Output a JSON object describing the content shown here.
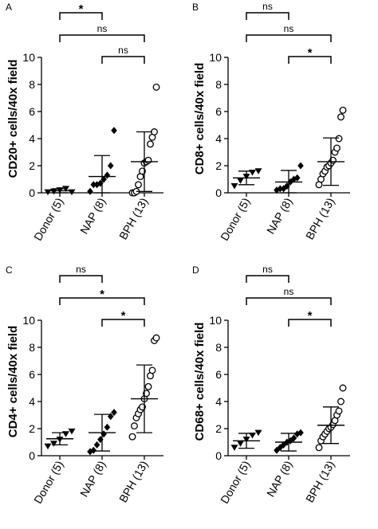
{
  "chart_data": [
    {
      "panel": "A",
      "type": "scatter",
      "ylabel": "CD20+ cells/40x  field",
      "ylim": [
        0,
        10
      ],
      "yticks": [
        0,
        2,
        4,
        6,
        8,
        10
      ],
      "categories": [
        "Donor (5)",
        "NAP (8)",
        "BPH (13)"
      ],
      "markers": [
        "triangle-down",
        "diamond",
        "circle-open"
      ],
      "points": [
        [
          0.05,
          0.1,
          0.2,
          0.3,
          0.05
        ],
        [
          0.1,
          0.6,
          0.6,
          0.7,
          1.0,
          1.3,
          2.0,
          4.6
        ],
        [
          0.0,
          0.0,
          0.1,
          0.6,
          1.2,
          1.6,
          2.2,
          2.3,
          2.4,
          3.6,
          4.1,
          4.5,
          7.8
        ]
      ],
      "mean": [
        0.15,
        1.2,
        2.3
      ],
      "sd": [
        0.15,
        1.55,
        2.2
      ],
      "brackets": [
        {
          "from": 0,
          "to": 1,
          "label": "*"
        },
        {
          "from": 0,
          "to": 2,
          "label": "ns"
        },
        {
          "from": 1,
          "to": 2,
          "label": "ns"
        }
      ]
    },
    {
      "panel": "B",
      "type": "scatter",
      "ylabel": "CD8+ cells/40x  field",
      "ylim": [
        0,
        10
      ],
      "yticks": [
        0,
        2,
        4,
        6,
        8,
        10
      ],
      "categories": [
        "Donor (5)",
        "NAP (8)",
        "BPH (13)"
      ],
      "markers": [
        "triangle-down",
        "diamond",
        "circle-open"
      ],
      "points": [
        [
          0.5,
          0.9,
          1.2,
          1.5,
          1.6
        ],
        [
          0.2,
          0.3,
          0.3,
          0.5,
          0.8,
          1.0,
          1.1,
          2.0
        ],
        [
          0.6,
          1.0,
          1.4,
          1.6,
          1.9,
          2.0,
          2.2,
          2.4,
          3.0,
          3.3,
          4.0,
          5.6,
          6.1
        ]
      ],
      "mean": [
        1.1,
        0.8,
        2.3
      ],
      "sd": [
        0.5,
        0.85,
        1.75
      ],
      "brackets": [
        {
          "from": 0,
          "to": 1,
          "label": "ns"
        },
        {
          "from": 0,
          "to": 2,
          "label": "ns"
        },
        {
          "from": 1,
          "to": 2,
          "label": "*"
        }
      ]
    },
    {
      "panel": "C",
      "type": "scatter",
      "ylabel": "CD4+ cells/40x  field",
      "ylim": [
        0,
        10
      ],
      "yticks": [
        0,
        2,
        4,
        6,
        8,
        10
      ],
      "categories": [
        "Donor (5)",
        "NAP (8)",
        "BPH (13)"
      ],
      "markers": [
        "triangle-down",
        "diamond",
        "circle-open"
      ],
      "points": [
        [
          0.7,
          0.9,
          1.2,
          1.6,
          1.8
        ],
        [
          0.3,
          0.4,
          0.8,
          1.2,
          1.6,
          2.1,
          2.9,
          3.2
        ],
        [
          1.4,
          2.2,
          2.8,
          3.1,
          3.4,
          3.6,
          4.2,
          4.6,
          5.1,
          5.9,
          6.3,
          8.5,
          8.7
        ]
      ],
      "mean": [
        1.25,
        1.7,
        4.2
      ],
      "sd": [
        0.45,
        1.35,
        2.5
      ],
      "brackets": [
        {
          "from": 0,
          "to": 1,
          "label": "ns"
        },
        {
          "from": 0,
          "to": 2,
          "label": "*"
        },
        {
          "from": 1,
          "to": 2,
          "label": "*"
        }
      ]
    },
    {
      "panel": "D",
      "type": "scatter",
      "ylabel": "CD68+ cells/40x  field",
      "ylim": [
        0,
        10
      ],
      "yticks": [
        0,
        2,
        4,
        6,
        8,
        10
      ],
      "categories": [
        "Donor (5)",
        "NAP (8)",
        "BPH (13)"
      ],
      "markers": [
        "triangle-down",
        "diamond",
        "circle-open"
      ],
      "points": [
        [
          0.6,
          0.9,
          1.2,
          1.5,
          1.7
        ],
        [
          0.4,
          0.6,
          0.8,
          1.0,
          1.1,
          1.3,
          1.6,
          1.7
        ],
        [
          0.6,
          1.1,
          1.4,
          1.6,
          1.8,
          2.0,
          2.1,
          2.3,
          2.6,
          3.0,
          3.3,
          4.0,
          5.0
        ]
      ],
      "mean": [
        1.1,
        1.0,
        2.25
      ],
      "sd": [
        0.55,
        0.65,
        1.35
      ],
      "brackets": [
        {
          "from": 0,
          "to": 1,
          "label": "ns"
        },
        {
          "from": 0,
          "to": 2,
          "label": "ns"
        },
        {
          "from": 1,
          "to": 2,
          "label": "*"
        }
      ]
    }
  ]
}
